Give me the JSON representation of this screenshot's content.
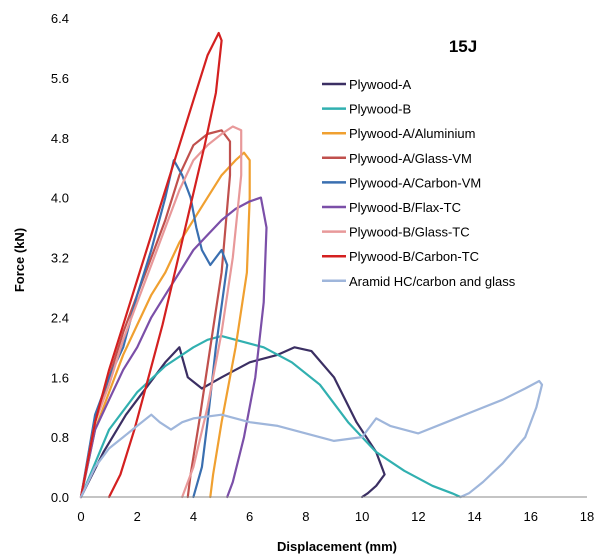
{
  "chart_data": {
    "type": "line",
    "title": "15J",
    "xlabel": "Displacement (mm)",
    "ylabel": "Force (kN)",
    "xlim": [
      0,
      18
    ],
    "ylim": [
      0,
      6.4
    ],
    "xticks": [
      "0",
      "2",
      "4",
      "6",
      "8",
      "10",
      "12",
      "14",
      "16",
      "18"
    ],
    "yticks": [
      "0.0",
      "0.8",
      "1.6",
      "2.4",
      "3.2",
      "4.0",
      "4.8",
      "5.6",
      "6.4"
    ],
    "grid": false,
    "legend_position": "right",
    "series": [
      {
        "name": "Plywood-A",
        "color": "#3b2f63",
        "x": [
          0,
          0.8,
          1.6,
          2.4,
          3.0,
          3.5,
          3.8,
          4.3,
          5.0,
          6.0,
          7.0,
          7.6,
          8.2,
          9.0,
          9.8,
          10.5,
          10.8,
          10.5,
          10.2,
          10.0
        ],
        "y": [
          0,
          0.6,
          1.1,
          1.5,
          1.8,
          2.0,
          1.6,
          1.45,
          1.6,
          1.8,
          1.9,
          2.0,
          1.95,
          1.6,
          1.0,
          0.6,
          0.3,
          0.15,
          0.05,
          0
        ]
      },
      {
        "name": "Plywood-B",
        "color": "#31b0b0",
        "x": [
          0,
          1.0,
          2.0,
          3.0,
          4.0,
          4.5,
          5.0,
          5.5,
          6.5,
          7.5,
          8.5,
          9.5,
          10.5,
          11.5,
          12.5,
          13.2,
          13.5
        ],
        "y": [
          0,
          0.9,
          1.4,
          1.75,
          2.0,
          2.1,
          2.15,
          2.1,
          2.0,
          1.8,
          1.5,
          1.0,
          0.6,
          0.35,
          0.15,
          0.05,
          0
        ]
      },
      {
        "name": "Plywood-A/Aluminium",
        "color": "#f0a030",
        "x": [
          0,
          0.5,
          1.0,
          1.5,
          2.0,
          2.5,
          3.0,
          3.5,
          4.0,
          4.5,
          5.0,
          5.5,
          5.8,
          6.0,
          6.0,
          5.9,
          5.5,
          5.0,
          4.7,
          4.6
        ],
        "y": [
          0,
          0.9,
          1.4,
          1.9,
          2.3,
          2.7,
          3.0,
          3.4,
          3.7,
          4.0,
          4.3,
          4.5,
          4.6,
          4.5,
          4.0,
          3.0,
          2.0,
          1.0,
          0.3,
          0
        ]
      },
      {
        "name": "Plywood-A/Glass-VM",
        "color": "#c0504d",
        "x": [
          0,
          0.5,
          1.0,
          1.5,
          2.0,
          2.5,
          3.0,
          3.5,
          4.0,
          4.5,
          5.0,
          5.3,
          5.3,
          5.0,
          4.6,
          4.2,
          3.9,
          3.8
        ],
        "y": [
          0,
          1.0,
          1.6,
          2.2,
          2.7,
          3.2,
          3.7,
          4.3,
          4.7,
          4.85,
          4.9,
          4.75,
          4.3,
          3.0,
          2.0,
          1.0,
          0.3,
          0
        ]
      },
      {
        "name": "Plywood-A/Carbon-VM",
        "color": "#3a6fb0",
        "x": [
          0,
          0.5,
          1.0,
          1.5,
          2.0,
          2.5,
          3.0,
          3.3,
          3.6,
          3.9,
          4.1,
          4.3,
          4.6,
          5.0,
          5.2,
          4.8,
          4.5,
          4.3,
          4.0
        ],
        "y": [
          0,
          1.1,
          1.6,
          2.0,
          2.7,
          3.3,
          4.0,
          4.5,
          4.3,
          4.0,
          3.6,
          3.3,
          3.1,
          3.3,
          3.1,
          2.0,
          1.0,
          0.4,
          0
        ]
      },
      {
        "name": "Plywood-B/Flax-TC",
        "color": "#7b4fa8",
        "x": [
          0,
          0.5,
          1.0,
          1.5,
          2.0,
          2.5,
          3.0,
          3.5,
          4.0,
          4.5,
          5.0,
          5.5,
          6.0,
          6.4,
          6.6,
          6.5,
          6.2,
          5.8,
          5.4,
          5.2
        ],
        "y": [
          0,
          0.9,
          1.3,
          1.7,
          2.0,
          2.4,
          2.7,
          3.0,
          3.3,
          3.5,
          3.7,
          3.85,
          3.95,
          4.0,
          3.6,
          2.6,
          1.6,
          0.8,
          0.2,
          0
        ]
      },
      {
        "name": "Plywood-B/Glass-TC",
        "color": "#e8999a",
        "x": [
          0,
          0.5,
          1.0,
          1.5,
          2.0,
          2.5,
          3.0,
          3.5,
          4.0,
          4.5,
          5.0,
          5.4,
          5.7,
          5.7,
          5.4,
          5.0,
          4.5,
          4.0,
          3.6
        ],
        "y": [
          0,
          1.0,
          1.5,
          2.1,
          2.6,
          3.1,
          3.6,
          4.1,
          4.5,
          4.7,
          4.85,
          4.95,
          4.9,
          4.3,
          3.2,
          2.2,
          1.2,
          0.4,
          0
        ]
      },
      {
        "name": "Plywood-B/Carbon-TC",
        "color": "#d42020",
        "x": [
          0,
          0.5,
          1.0,
          1.5,
          2.0,
          2.5,
          3.0,
          3.5,
          4.0,
          4.5,
          4.9,
          5.0,
          4.8,
          4.4,
          3.9,
          3.4,
          2.9,
          2.4,
          1.9,
          1.4,
          1.0
        ],
        "y": [
          0,
          1.0,
          1.7,
          2.3,
          2.9,
          3.5,
          4.1,
          4.7,
          5.3,
          5.9,
          6.2,
          6.1,
          5.4,
          4.7,
          3.9,
          3.1,
          2.3,
          1.6,
          0.9,
          0.3,
          0
        ]
      },
      {
        "name": "Aramid HC/carbon and glass",
        "color": "#9fb6db",
        "x": [
          0,
          0.5,
          1.0,
          1.5,
          2.0,
          2.5,
          2.8,
          3.2,
          3.6,
          4.0,
          5.0,
          6.0,
          7.0,
          8.0,
          9.0,
          10.0,
          10.5,
          11.0,
          12.0,
          13.0,
          14.0,
          15.0,
          15.8,
          16.3,
          16.4,
          16.2,
          15.8,
          15.0,
          14.3,
          13.8,
          13.5
        ],
        "y": [
          0,
          0.4,
          0.65,
          0.8,
          0.95,
          1.1,
          1.0,
          0.9,
          1.0,
          1.05,
          1.1,
          1.0,
          0.95,
          0.85,
          0.75,
          0.8,
          1.05,
          0.95,
          0.85,
          1.0,
          1.15,
          1.3,
          1.45,
          1.55,
          1.5,
          1.2,
          0.8,
          0.45,
          0.2,
          0.05,
          0
        ]
      }
    ]
  }
}
